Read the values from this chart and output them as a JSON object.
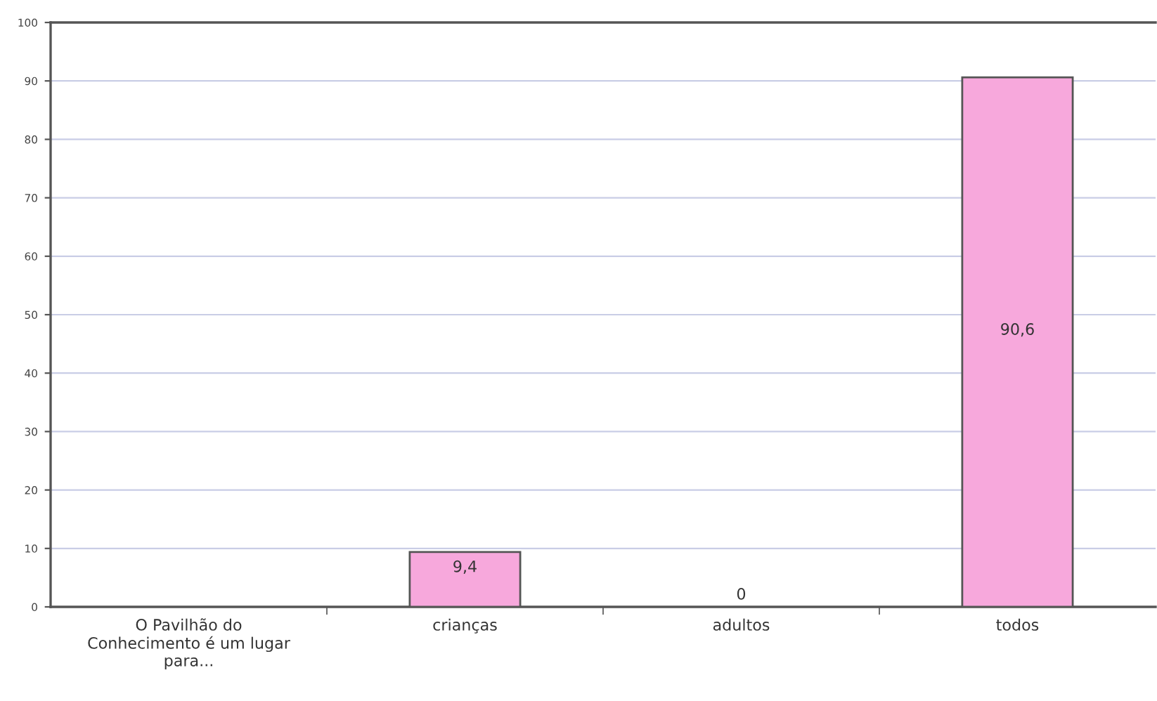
{
  "chart_data": {
    "type": "bar",
    "categories": [
      "O Pavilhão do\nConhecimento é um lugar\npara...",
      "crianças",
      "adultos",
      "todos"
    ],
    "values": [
      null,
      9.4,
      0,
      90.6
    ],
    "value_labels": [
      null,
      "9,4",
      "0",
      "90,6"
    ],
    "color": "#f7a8dc",
    "ylim": [
      0,
      100
    ],
    "yticks": [
      0,
      10,
      20,
      30,
      40,
      50,
      60,
      70,
      80,
      90,
      100
    ],
    "grid": "y"
  }
}
